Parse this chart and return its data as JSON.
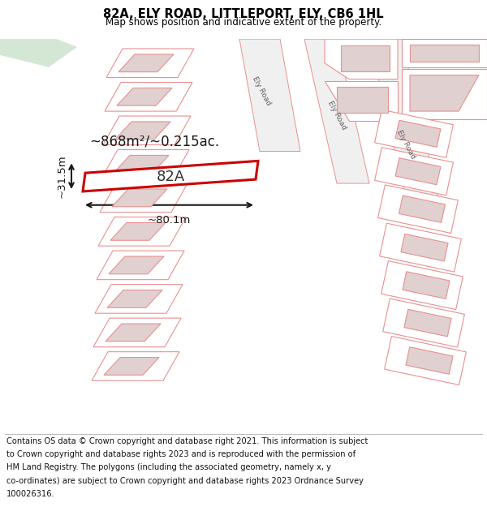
{
  "title": "82A, ELY ROAD, LITTLEPORT, ELY, CB6 1HL",
  "subtitle": "Map shows position and indicative extent of the property.",
  "footer_lines": [
    "Contains OS data © Crown copyright and database right 2021. This information is subject",
    "to Crown copyright and database rights 2023 and is reproduced with the permission of",
    "HM Land Registry. The polygons (including the associated geometry, namely x, y",
    "co-ordinates) are subject to Crown copyright and database rights 2023 Ordnance Survey",
    "100026316."
  ],
  "background_color": "#ffffff",
  "map_bg_color": "#f5f5f5",
  "plot_color": "#cc0000",
  "parcel_edge": "#e89090",
  "parcel_face": "#ffffff",
  "building_face": "#e0d0d0",
  "road_face": "#f0f0f0",
  "green_face": "#d4e6d4",
  "dim_color": "#1a1a1a",
  "area_text": "~868m²/~0.215ac.",
  "label_82a": "82A",
  "dim_width": "~80.1m",
  "dim_height": "~31.5m",
  "road_label": "Ely Road"
}
